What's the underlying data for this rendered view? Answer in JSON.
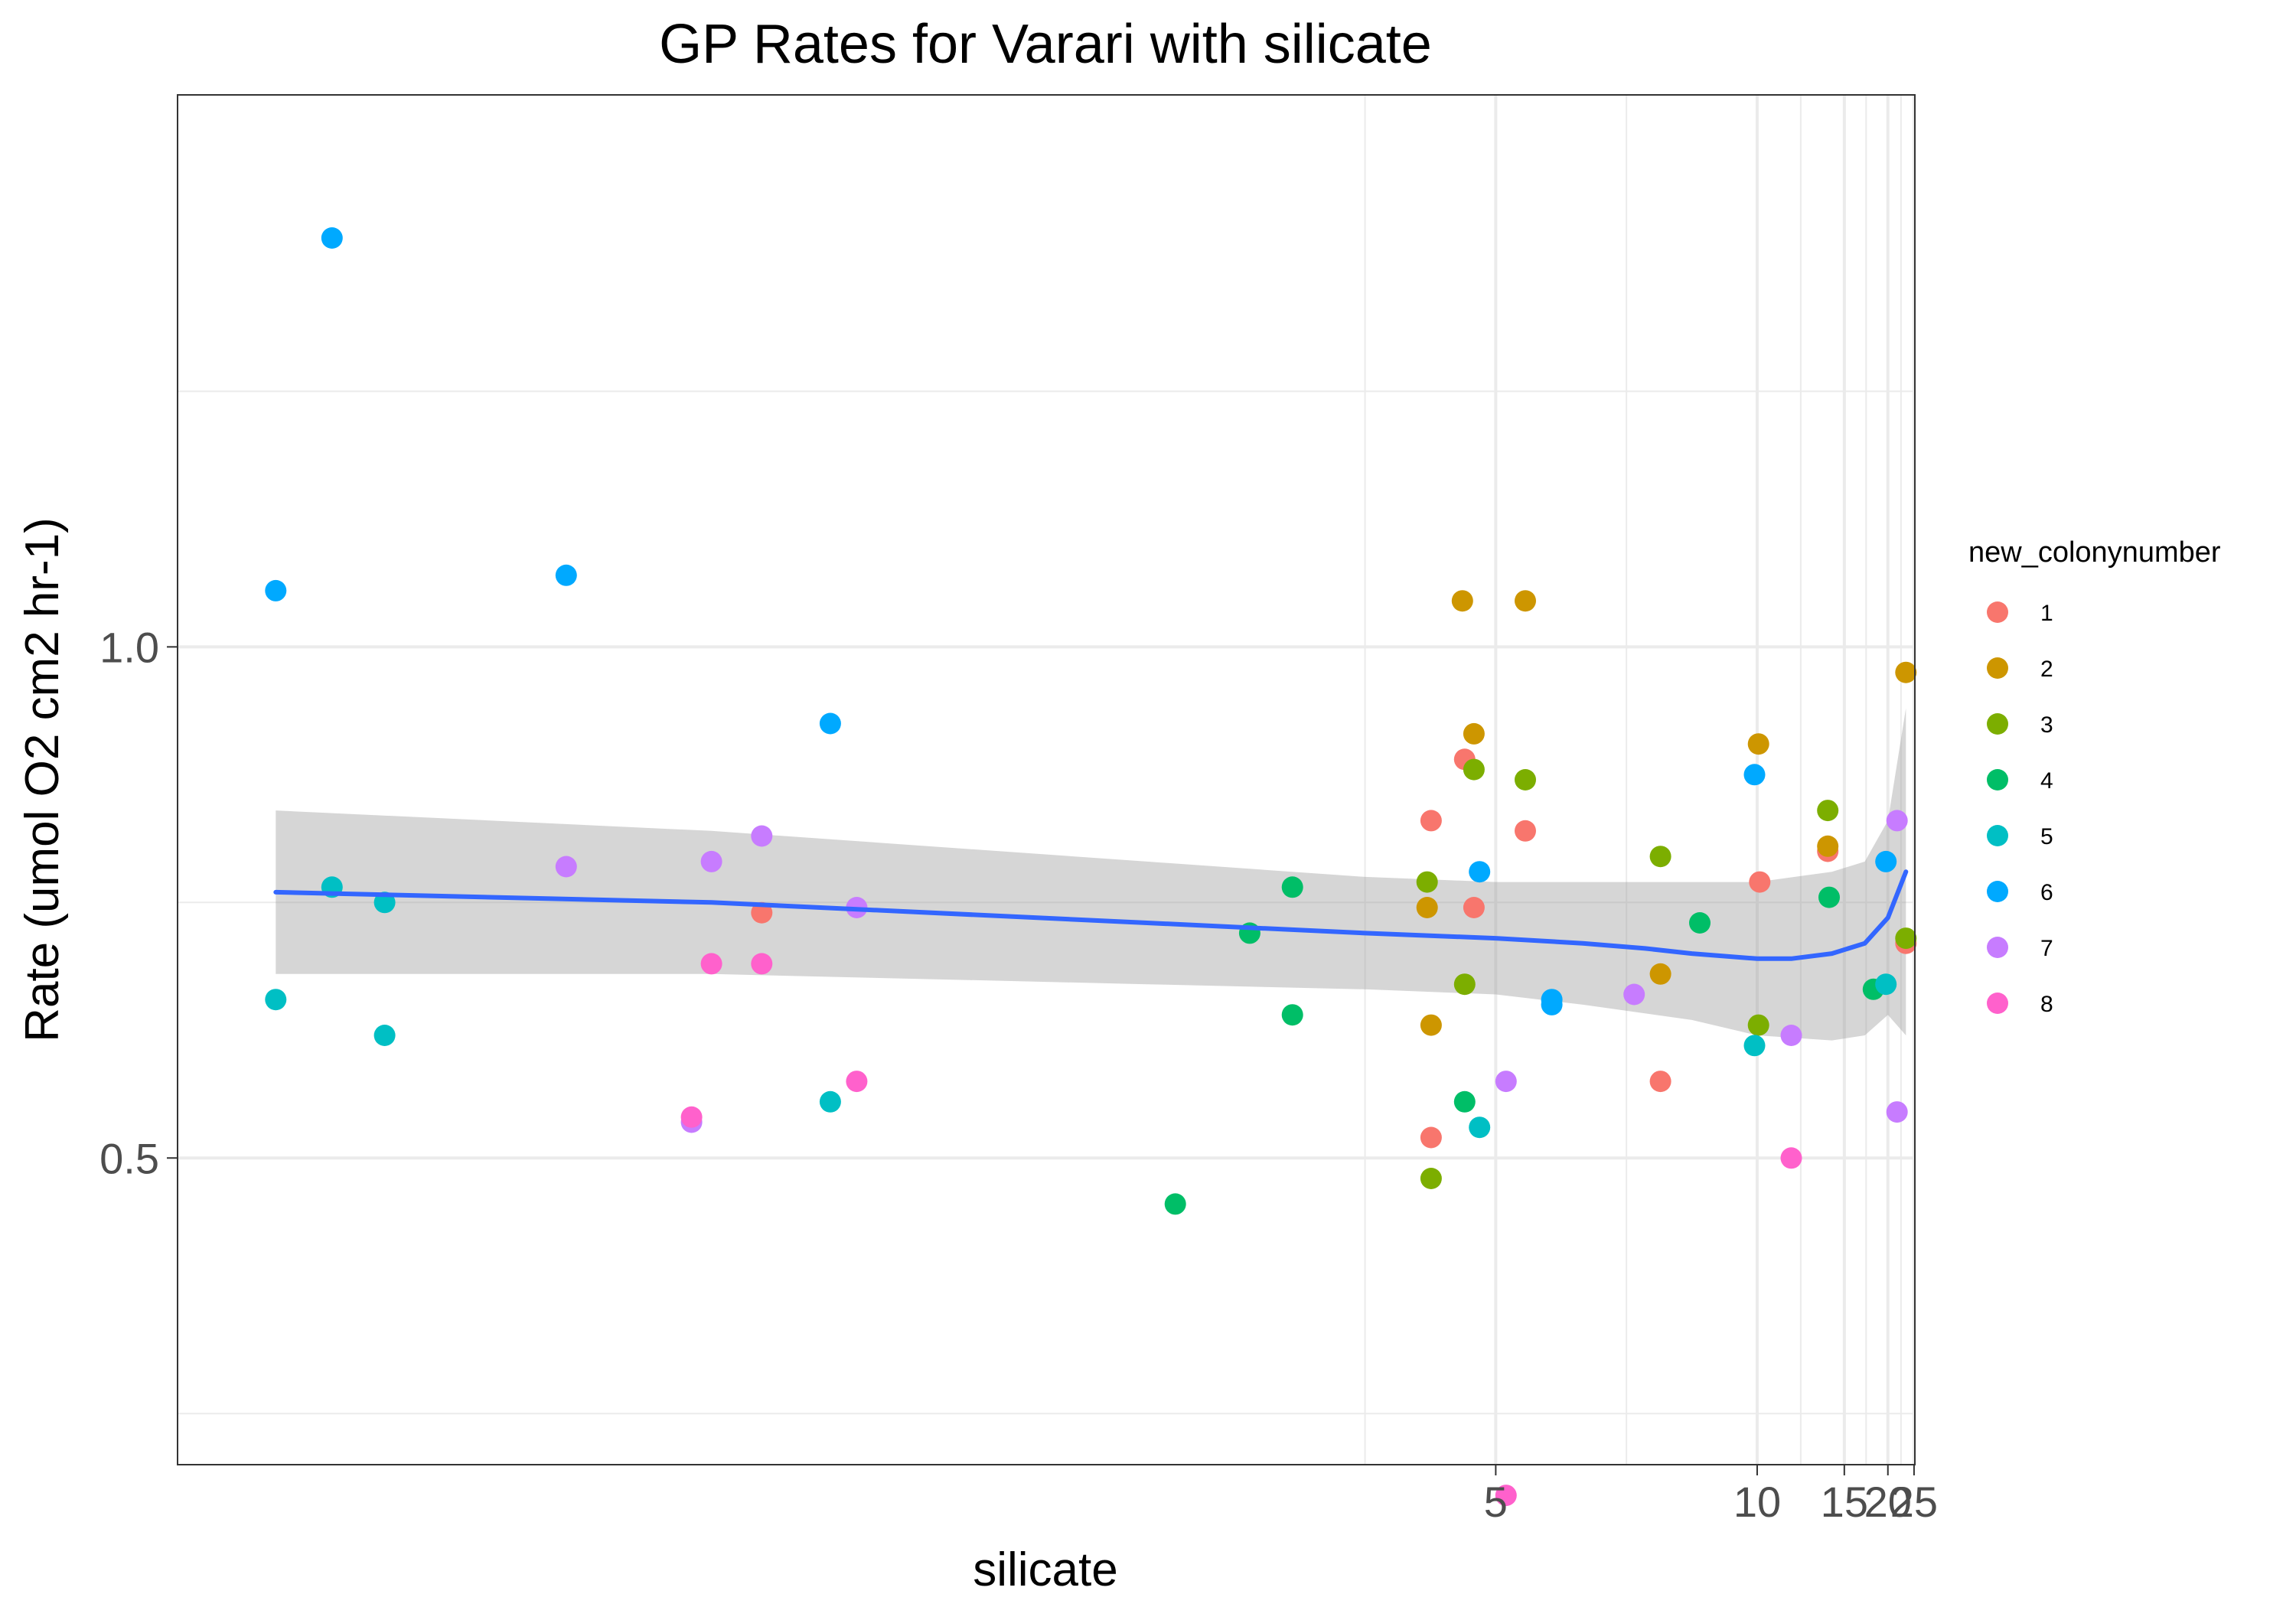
{
  "chart_data": {
    "type": "scatter",
    "title": "GP Rates for Varari with silicate",
    "xlabel": "silicate",
    "ylabel": "Rate (umol O2 cm2 hr-1)",
    "x_scale": "reciprocal",
    "xlim": [
      1.42,
      25.2
    ],
    "ylim": [
      0.2,
      1.54
    ],
    "x_ticks": [
      5,
      10,
      15,
      20,
      25
    ],
    "y_ticks": [
      0.5,
      1.0
    ],
    "x_tick_labels": [
      "5",
      "10",
      "15",
      "20",
      "25"
    ],
    "y_tick_labels": [
      "0.5",
      "1.0"
    ],
    "grid": true,
    "legend": {
      "title": "new_colonynumber",
      "position": "right",
      "entries": [
        {
          "label": "1",
          "color": "#F8766D"
        },
        {
          "label": "2",
          "color": "#CD9600"
        },
        {
          "label": "3",
          "color": "#7CAE00"
        },
        {
          "label": "4",
          "color": "#00BE67"
        },
        {
          "label": "5",
          "color": "#00BFC4"
        },
        {
          "label": "6",
          "color": "#00A9FF"
        },
        {
          "label": "7",
          "color": "#C77CFF"
        },
        {
          "label": "8",
          "color": "#FF61CC"
        }
      ]
    },
    "series": [
      {
        "name": "1",
        "color": "#F8766D",
        "points": [
          [
            2.08,
            0.74
          ],
          [
            4.45,
            0.83
          ],
          [
            4.45,
            0.52
          ],
          [
            4.72,
            0.89
          ],
          [
            4.8,
            0.745
          ],
          [
            5.3,
            0.82
          ],
          [
            7.3,
            0.575
          ],
          [
            10.1,
            0.77
          ],
          [
            13.7,
            0.8
          ],
          [
            23.2,
            0.71
          ]
        ]
      },
      {
        "name": "2",
        "color": "#CD9600",
        "points": [
          [
            4.42,
            0.745
          ],
          [
            4.45,
            0.63
          ],
          [
            4.7,
            1.045
          ],
          [
            4.8,
            0.915
          ],
          [
            5.3,
            1.045
          ],
          [
            7.3,
            0.68
          ],
          [
            10.05,
            0.905
          ],
          [
            13.7,
            0.805
          ],
          [
            23.2,
            0.975
          ]
        ]
      },
      {
        "name": "3",
        "color": "#7CAE00",
        "points": [
          [
            4.42,
            0.77
          ],
          [
            4.45,
            0.48
          ],
          [
            4.72,
            0.67
          ],
          [
            4.8,
            0.88
          ],
          [
            5.3,
            0.87
          ],
          [
            7.3,
            0.795
          ],
          [
            10.05,
            0.63
          ],
          [
            13.7,
            0.84
          ],
          [
            23.2,
            0.715
          ]
        ]
      },
      {
        "name": "4",
        "color": "#00BE67",
        "points": [
          [
            3.1,
            0.455
          ],
          [
            3.4,
            0.72
          ],
          [
            3.6,
            0.64
          ],
          [
            3.6,
            0.765
          ],
          [
            4.72,
            0.555
          ],
          [
            8.2,
            0.73
          ],
          [
            13.8,
            0.755
          ],
          [
            18.0,
            0.665
          ]
        ]
      },
      {
        "name": "5",
        "color": "#00BFC4",
        "points": [
          [
            1.5,
            0.655
          ],
          [
            1.55,
            0.765
          ],
          [
            1.6,
            0.75
          ],
          [
            1.6,
            0.62
          ],
          [
            2.2,
            0.555
          ],
          [
            4.85,
            0.53
          ],
          [
            9.9,
            0.61
          ],
          [
            19.7,
            0.67
          ]
        ]
      },
      {
        "name": "6",
        "color": "#00A9FF",
        "points": [
          [
            1.5,
            1.055
          ],
          [
            1.55,
            1.4
          ],
          [
            1.8,
            1.07
          ],
          [
            2.2,
            0.925
          ],
          [
            4.85,
            0.78
          ],
          [
            5.6,
            0.655
          ],
          [
            5.6,
            0.65
          ],
          [
            9.9,
            0.875
          ],
          [
            19.7,
            0.79
          ]
        ]
      },
      {
        "name": "7",
        "color": "#C77CFF",
        "points": [
          [
            1.8,
            0.785
          ],
          [
            2.0,
            0.79
          ],
          [
            2.08,
            0.815
          ],
          [
            1.97,
            0.535
          ],
          [
            2.25,
            0.745
          ],
          [
            5.1,
            0.575
          ],
          [
            6.8,
            0.66
          ],
          [
            11.5,
            0.62
          ],
          [
            21.5,
            0.545
          ],
          [
            21.5,
            0.83
          ]
        ]
      },
      {
        "name": "8",
        "color": "#FF61CC",
        "points": [
          [
            1.97,
            0.54
          ],
          [
            2.0,
            0.69
          ],
          [
            2.08,
            0.69
          ],
          [
            2.25,
            0.575
          ],
          [
            5.1,
            0.17
          ],
          [
            11.5,
            0.5
          ]
        ]
      }
    ],
    "smooth": {
      "color": "#3366FF",
      "ribbon_color": "#999999",
      "points": [
        [
          1.5,
          0.76
        ],
        [
          2.0,
          0.75
        ],
        [
          3.0,
          0.73
        ],
        [
          4.0,
          0.72
        ],
        [
          5.0,
          0.715
        ],
        [
          6.0,
          0.71
        ],
        [
          7.0,
          0.705
        ],
        [
          8.0,
          0.7
        ],
        [
          10.0,
          0.695
        ],
        [
          11.5,
          0.695
        ],
        [
          14.0,
          0.7
        ],
        [
          17.0,
          0.71
        ],
        [
          20.0,
          0.735
        ],
        [
          23.2,
          0.78
        ]
      ],
      "upper": [
        [
          1.5,
          0.84
        ],
        [
          2.0,
          0.82
        ],
        [
          3.0,
          0.79
        ],
        [
          4.0,
          0.775
        ],
        [
          5.0,
          0.77
        ],
        [
          6.0,
          0.77
        ],
        [
          8.0,
          0.77
        ],
        [
          10.0,
          0.77
        ],
        [
          14.0,
          0.78
        ],
        [
          17.0,
          0.79
        ],
        [
          20.0,
          0.83
        ],
        [
          23.2,
          0.94
        ]
      ],
      "lower": [
        [
          1.5,
          0.68
        ],
        [
          2.0,
          0.68
        ],
        [
          3.0,
          0.67
        ],
        [
          4.0,
          0.665
        ],
        [
          5.0,
          0.66
        ],
        [
          6.0,
          0.65
        ],
        [
          8.0,
          0.635
        ],
        [
          10.0,
          0.62
        ],
        [
          14.0,
          0.615
        ],
        [
          17.0,
          0.62
        ],
        [
          20.0,
          0.64
        ],
        [
          23.2,
          0.62
        ]
      ]
    }
  }
}
